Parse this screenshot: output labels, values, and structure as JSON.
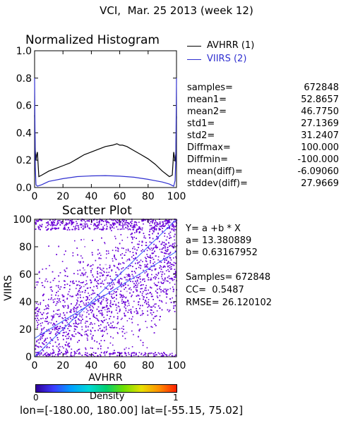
{
  "title": "VCI,  Mar. 25 2013 (week 12)",
  "footer": "lon=[-180.00, 180.00] lat=[-55.15, 75.02]",
  "colors": {
    "series1": "#000000",
    "series2": "#2f2fd0",
    "scatter": "#6a00d8",
    "fit": "#3a5cff"
  },
  "legend": [
    {
      "label": "AVHRR (1)",
      "color": "#000000"
    },
    {
      "label": "VIIRS (2)",
      "color": "#2f2fd0"
    }
  ],
  "stats": [
    {
      "label": "samples=",
      "value": "672848"
    },
    {
      "label": "mean1=",
      "value": "52.8657"
    },
    {
      "label": "mean2=",
      "value": "46.7750"
    },
    {
      "label": "std1=",
      "value": "27.1369"
    },
    {
      "label": "std2=",
      "value": "31.2407"
    },
    {
      "label": "Diffmax=",
      "value": "100.000"
    },
    {
      "label": "Diffmin=",
      "value": "-100.000"
    },
    {
      "label": "mean(diff)=",
      "value": "-6.09060"
    },
    {
      "label": "stddev(diff)=",
      "value": "27.9669"
    }
  ],
  "scatter_stats": {
    "equation": "Y= a +b * X",
    "a": "a= 13.380889",
    "b": "b= 0.63167952",
    "samples": "Samples= 672848",
    "cc": "CC=  0.5487",
    "rmse": "RMSE= 26.120102"
  },
  "colorbar": {
    "label": "Density",
    "min_label": "0",
    "max_label": "1",
    "colors": [
      "#30009a",
      "#3c3cff",
      "#00a0ff",
      "#00d8d8",
      "#00d070",
      "#70e000",
      "#e8e000",
      "#ff9000",
      "#ff2000"
    ]
  },
  "chart_data": [
    {
      "type": "line",
      "title": "Normalized Histogram",
      "xlim": [
        0,
        100
      ],
      "ylim": [
        0,
        1
      ],
      "xticks": [
        0,
        20,
        40,
        60,
        80,
        100
      ],
      "yticks": [
        0.0,
        0.2,
        0.4,
        0.6,
        0.8,
        1.0
      ],
      "ytick_labels": [
        "0.0",
        "0.2",
        "0.4",
        "0.6",
        "0.8",
        "1.0"
      ],
      "series": [
        {
          "name": "AVHRR (1)",
          "x": [
            0,
            0.5,
            1,
            1.5,
            2,
            3,
            5,
            10,
            15,
            20,
            25,
            30,
            35,
            40,
            45,
            50,
            55,
            58,
            60,
            62,
            65,
            70,
            75,
            80,
            85,
            90,
            95,
            97,
            98,
            99,
            99.5,
            100
          ],
          "y": [
            0.53,
            0.27,
            0.2,
            0.24,
            0.26,
            0.08,
            0.09,
            0.12,
            0.14,
            0.16,
            0.18,
            0.21,
            0.24,
            0.26,
            0.28,
            0.3,
            0.31,
            0.32,
            0.31,
            0.31,
            0.3,
            0.27,
            0.24,
            0.21,
            0.17,
            0.12,
            0.08,
            0.09,
            0.26,
            0.19,
            0.25,
            0.52
          ]
        },
        {
          "name": "VIIRS (2)",
          "x": [
            0,
            0.5,
            1,
            2,
            5,
            10,
            20,
            30,
            40,
            50,
            60,
            70,
            80,
            90,
            95,
            98,
            99,
            99.5,
            100
          ],
          "y": [
            0.8,
            0.15,
            0.02,
            0.01,
            0.02,
            0.045,
            0.065,
            0.08,
            0.085,
            0.087,
            0.083,
            0.075,
            0.06,
            0.04,
            0.025,
            0.01,
            0.05,
            0.2,
            0.8
          ]
        }
      ]
    },
    {
      "type": "scatter",
      "title": "Scatter Plot",
      "xlabel": "AVHRR",
      "ylabel": "VIIRS",
      "xlim": [
        0,
        100
      ],
      "ylim": [
        0,
        100
      ],
      "xticks": [
        0,
        20,
        40,
        60,
        80,
        100
      ],
      "yticks": [
        0,
        20,
        40,
        60,
        80,
        100
      ],
      "fit": {
        "a": 13.380889,
        "b": 0.63167952
      },
      "correlation": 0.5487,
      "samples": 672848
    }
  ]
}
